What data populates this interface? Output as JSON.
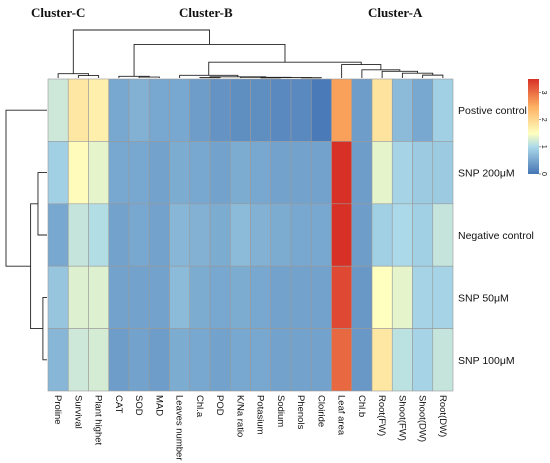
{
  "chart_data": {
    "type": "heatmap",
    "cluster_labels": [
      "Cluster-C",
      "Cluster-B",
      "Cluster-A"
    ],
    "rows": [
      "Postive control",
      "SNP 200μM",
      "Negative control",
      "SNP 50μM",
      "SNP 100μM"
    ],
    "columns": [
      "Proline",
      "Survival",
      "Plant highet",
      "CAT",
      "SOD",
      "MAD",
      "Leaves number",
      "Chl.a",
      "POD",
      "K/Na ratio",
      "Potasium",
      "Sodium",
      "Phenols",
      "Cloiride",
      "Leaf area",
      "Chl.b",
      "Root(FW)",
      "Shoot(FW)",
      "Shoot(DW)",
      "Root(DW)"
    ],
    "values": [
      [
        1.2,
        1.8,
        1.7,
        0.5,
        0.6,
        0.5,
        0.5,
        0.4,
        0.3,
        0.25,
        0.25,
        0.2,
        0.2,
        0.05,
        2.6,
        0.4,
        1.85,
        0.7,
        0.5,
        0.9
      ],
      [
        0.9,
        1.55,
        1.35,
        0.5,
        0.5,
        0.45,
        0.55,
        0.5,
        0.45,
        0.55,
        0.5,
        0.45,
        0.45,
        0.45,
        3.5,
        0.4,
        1.35,
        0.95,
        0.85,
        0.85
      ],
      [
        0.5,
        1.15,
        1.05,
        0.45,
        0.5,
        0.45,
        0.65,
        0.6,
        0.55,
        0.7,
        0.6,
        0.55,
        0.5,
        0.5,
        3.6,
        0.4,
        0.9,
        1.0,
        0.9,
        1.15
      ],
      [
        0.8,
        1.3,
        1.3,
        0.45,
        0.45,
        0.45,
        0.7,
        0.55,
        0.5,
        0.55,
        0.5,
        0.45,
        0.45,
        0.45,
        3.3,
        0.35,
        1.5,
        1.35,
        0.95,
        0.95
      ],
      [
        0.65,
        1.2,
        1.25,
        0.4,
        0.45,
        0.4,
        0.55,
        0.5,
        0.45,
        0.5,
        0.5,
        0.45,
        0.45,
        0.45,
        3.05,
        0.35,
        1.8,
        1.1,
        0.95,
        1.15
      ]
    ],
    "color_scale": {
      "stops": [
        [
          0,
          "#4575b4"
        ],
        [
          1,
          "#abd9e9"
        ],
        [
          1.5,
          "#ffffbf"
        ],
        [
          2.5,
          "#fdae61"
        ],
        [
          3.5,
          "#d73027"
        ]
      ],
      "ticks": [
        0,
        1,
        2,
        3
      ],
      "tick_labels": [
        "0",
        "1",
        "2",
        "3"
      ],
      "legend_position": "right"
    },
    "row_dendrogram": "left",
    "column_dendrogram": "top"
  }
}
